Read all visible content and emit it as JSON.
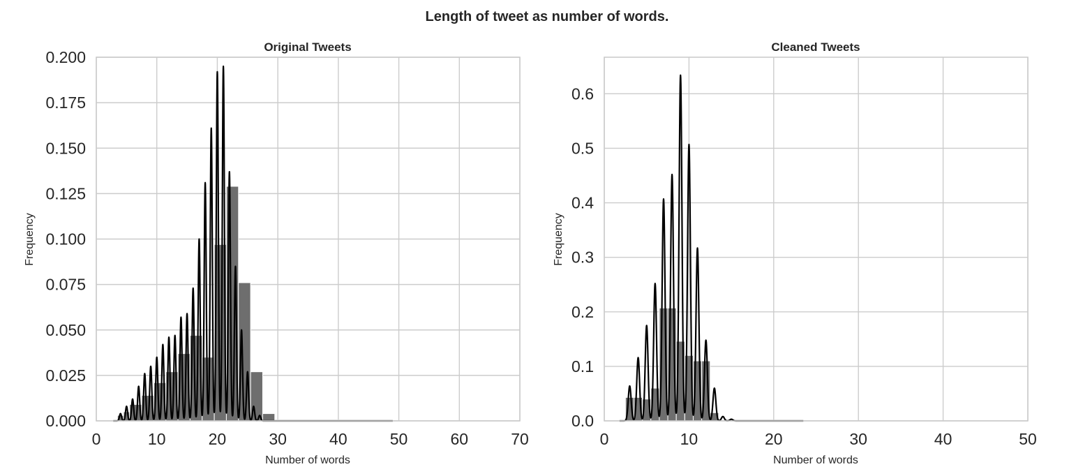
{
  "suptitle": "Length of tweet as number of words.",
  "chart_data": [
    {
      "type": "bar",
      "title": "Original Tweets",
      "xlabel": "Number of words",
      "ylabel": "Frequency",
      "xlim": [
        0,
        70
      ],
      "ylim": [
        0,
        0.2
      ],
      "xticks": [
        "0",
        "10",
        "20",
        "30",
        "40",
        "50",
        "60",
        "70"
      ],
      "yticks": [
        "0.000",
        "0.025",
        "0.050",
        "0.075",
        "0.100",
        "0.125",
        "0.150",
        "0.175",
        "0.200"
      ],
      "grid": true,
      "bars": [
        {
          "x0": 3.5,
          "x1": 4.5,
          "y": 0.003
        },
        {
          "x0": 4.5,
          "x1": 5.5,
          "y": 0.005
        },
        {
          "x0": 5.5,
          "x1": 7.5,
          "y": 0.009
        },
        {
          "x0": 7.5,
          "x1": 9.5,
          "y": 0.014
        },
        {
          "x0": 9.5,
          "x1": 11.5,
          "y": 0.021
        },
        {
          "x0": 11.5,
          "x1": 13.5,
          "y": 0.027
        },
        {
          "x0": 13.5,
          "x1": 15.5,
          "y": 0.037
        },
        {
          "x0": 15.5,
          "x1": 17.5,
          "y": 0.047
        },
        {
          "x0": 17.5,
          "x1": 19.5,
          "y": 0.035
        },
        {
          "x0": 19.5,
          "x1": 21.5,
          "y": 0.097
        },
        {
          "x0": 21.5,
          "x1": 23.5,
          "y": 0.129
        },
        {
          "x0": 23.5,
          "x1": 25.5,
          "y": 0.076
        },
        {
          "x0": 25.5,
          "x1": 27.5,
          "y": 0.027
        },
        {
          "x0": 27.5,
          "x1": 29.5,
          "y": 0.004
        },
        {
          "x0": 29.5,
          "x1": 49,
          "y": 0.0005
        }
      ],
      "kde_peaks": [
        {
          "x": 4,
          "y": 0.004
        },
        {
          "x": 5,
          "y": 0.008
        },
        {
          "x": 6,
          "y": 0.012
        },
        {
          "x": 7,
          "y": 0.019
        },
        {
          "x": 8,
          "y": 0.026
        },
        {
          "x": 9,
          "y": 0.03
        },
        {
          "x": 10,
          "y": 0.035
        },
        {
          "x": 11,
          "y": 0.042
        },
        {
          "x": 12,
          "y": 0.046
        },
        {
          "x": 13,
          "y": 0.047
        },
        {
          "x": 14,
          "y": 0.057
        },
        {
          "x": 15,
          "y": 0.059
        },
        {
          "x": 16,
          "y": 0.073
        },
        {
          "x": 17,
          "y": 0.1
        },
        {
          "x": 18,
          "y": 0.131
        },
        {
          "x": 19,
          "y": 0.161
        },
        {
          "x": 20,
          "y": 0.192
        },
        {
          "x": 21,
          "y": 0.195
        },
        {
          "x": 22,
          "y": 0.137
        },
        {
          "x": 23,
          "y": 0.085
        },
        {
          "x": 24,
          "y": 0.05
        },
        {
          "x": 25,
          "y": 0.027
        },
        {
          "x": 26,
          "y": 0.008
        },
        {
          "x": 27,
          "y": 0.003
        }
      ],
      "kde_xmax": 49
    },
    {
      "type": "bar",
      "title": "Cleaned Tweets",
      "xlabel": "Number of words",
      "ylabel": "Frequency",
      "xlim": [
        0,
        50
      ],
      "ylim": [
        0,
        0.667
      ],
      "xticks": [
        "0",
        "10",
        "20",
        "30",
        "40",
        "50"
      ],
      "yticks": [
        "0.0",
        "0.1",
        "0.2",
        "0.3",
        "0.4",
        "0.5",
        "0.6"
      ],
      "grid": true,
      "bars": [
        {
          "x0": 2.5,
          "x1": 3.5,
          "y": 0.043
        },
        {
          "x0": 3.5,
          "x1": 4.5,
          "y": 0.043
        },
        {
          "x0": 4.5,
          "x1": 5.5,
          "y": 0.04
        },
        {
          "x0": 5.5,
          "x1": 6.5,
          "y": 0.06
        },
        {
          "x0": 6.5,
          "x1": 7.5,
          "y": 0.207
        },
        {
          "x0": 7.5,
          "x1": 8.5,
          "y": 0.207
        },
        {
          "x0": 8.5,
          "x1": 9.5,
          "y": 0.146
        },
        {
          "x0": 9.5,
          "x1": 10.5,
          "y": 0.12
        },
        {
          "x0": 10.5,
          "x1": 11.5,
          "y": 0.11
        },
        {
          "x0": 11.5,
          "x1": 12.5,
          "y": 0.11
        },
        {
          "x0": 12.5,
          "x1": 13.5,
          "y": 0.015
        },
        {
          "x0": 13.5,
          "x1": 23.5,
          "y": 0.0015
        }
      ],
      "kde_peaks": [
        {
          "x": 3,
          "y": 0.064
        },
        {
          "x": 4,
          "y": 0.116
        },
        {
          "x": 5,
          "y": 0.175
        },
        {
          "x": 6,
          "y": 0.252
        },
        {
          "x": 7,
          "y": 0.407
        },
        {
          "x": 8,
          "y": 0.452
        },
        {
          "x": 9,
          "y": 0.634
        },
        {
          "x": 10,
          "y": 0.507
        },
        {
          "x": 11,
          "y": 0.317
        },
        {
          "x": 12,
          "y": 0.148
        },
        {
          "x": 13,
          "y": 0.06
        },
        {
          "x": 14,
          "y": 0.008
        },
        {
          "x": 15,
          "y": 0.003
        }
      ],
      "kde_xmax": 23.5
    }
  ]
}
